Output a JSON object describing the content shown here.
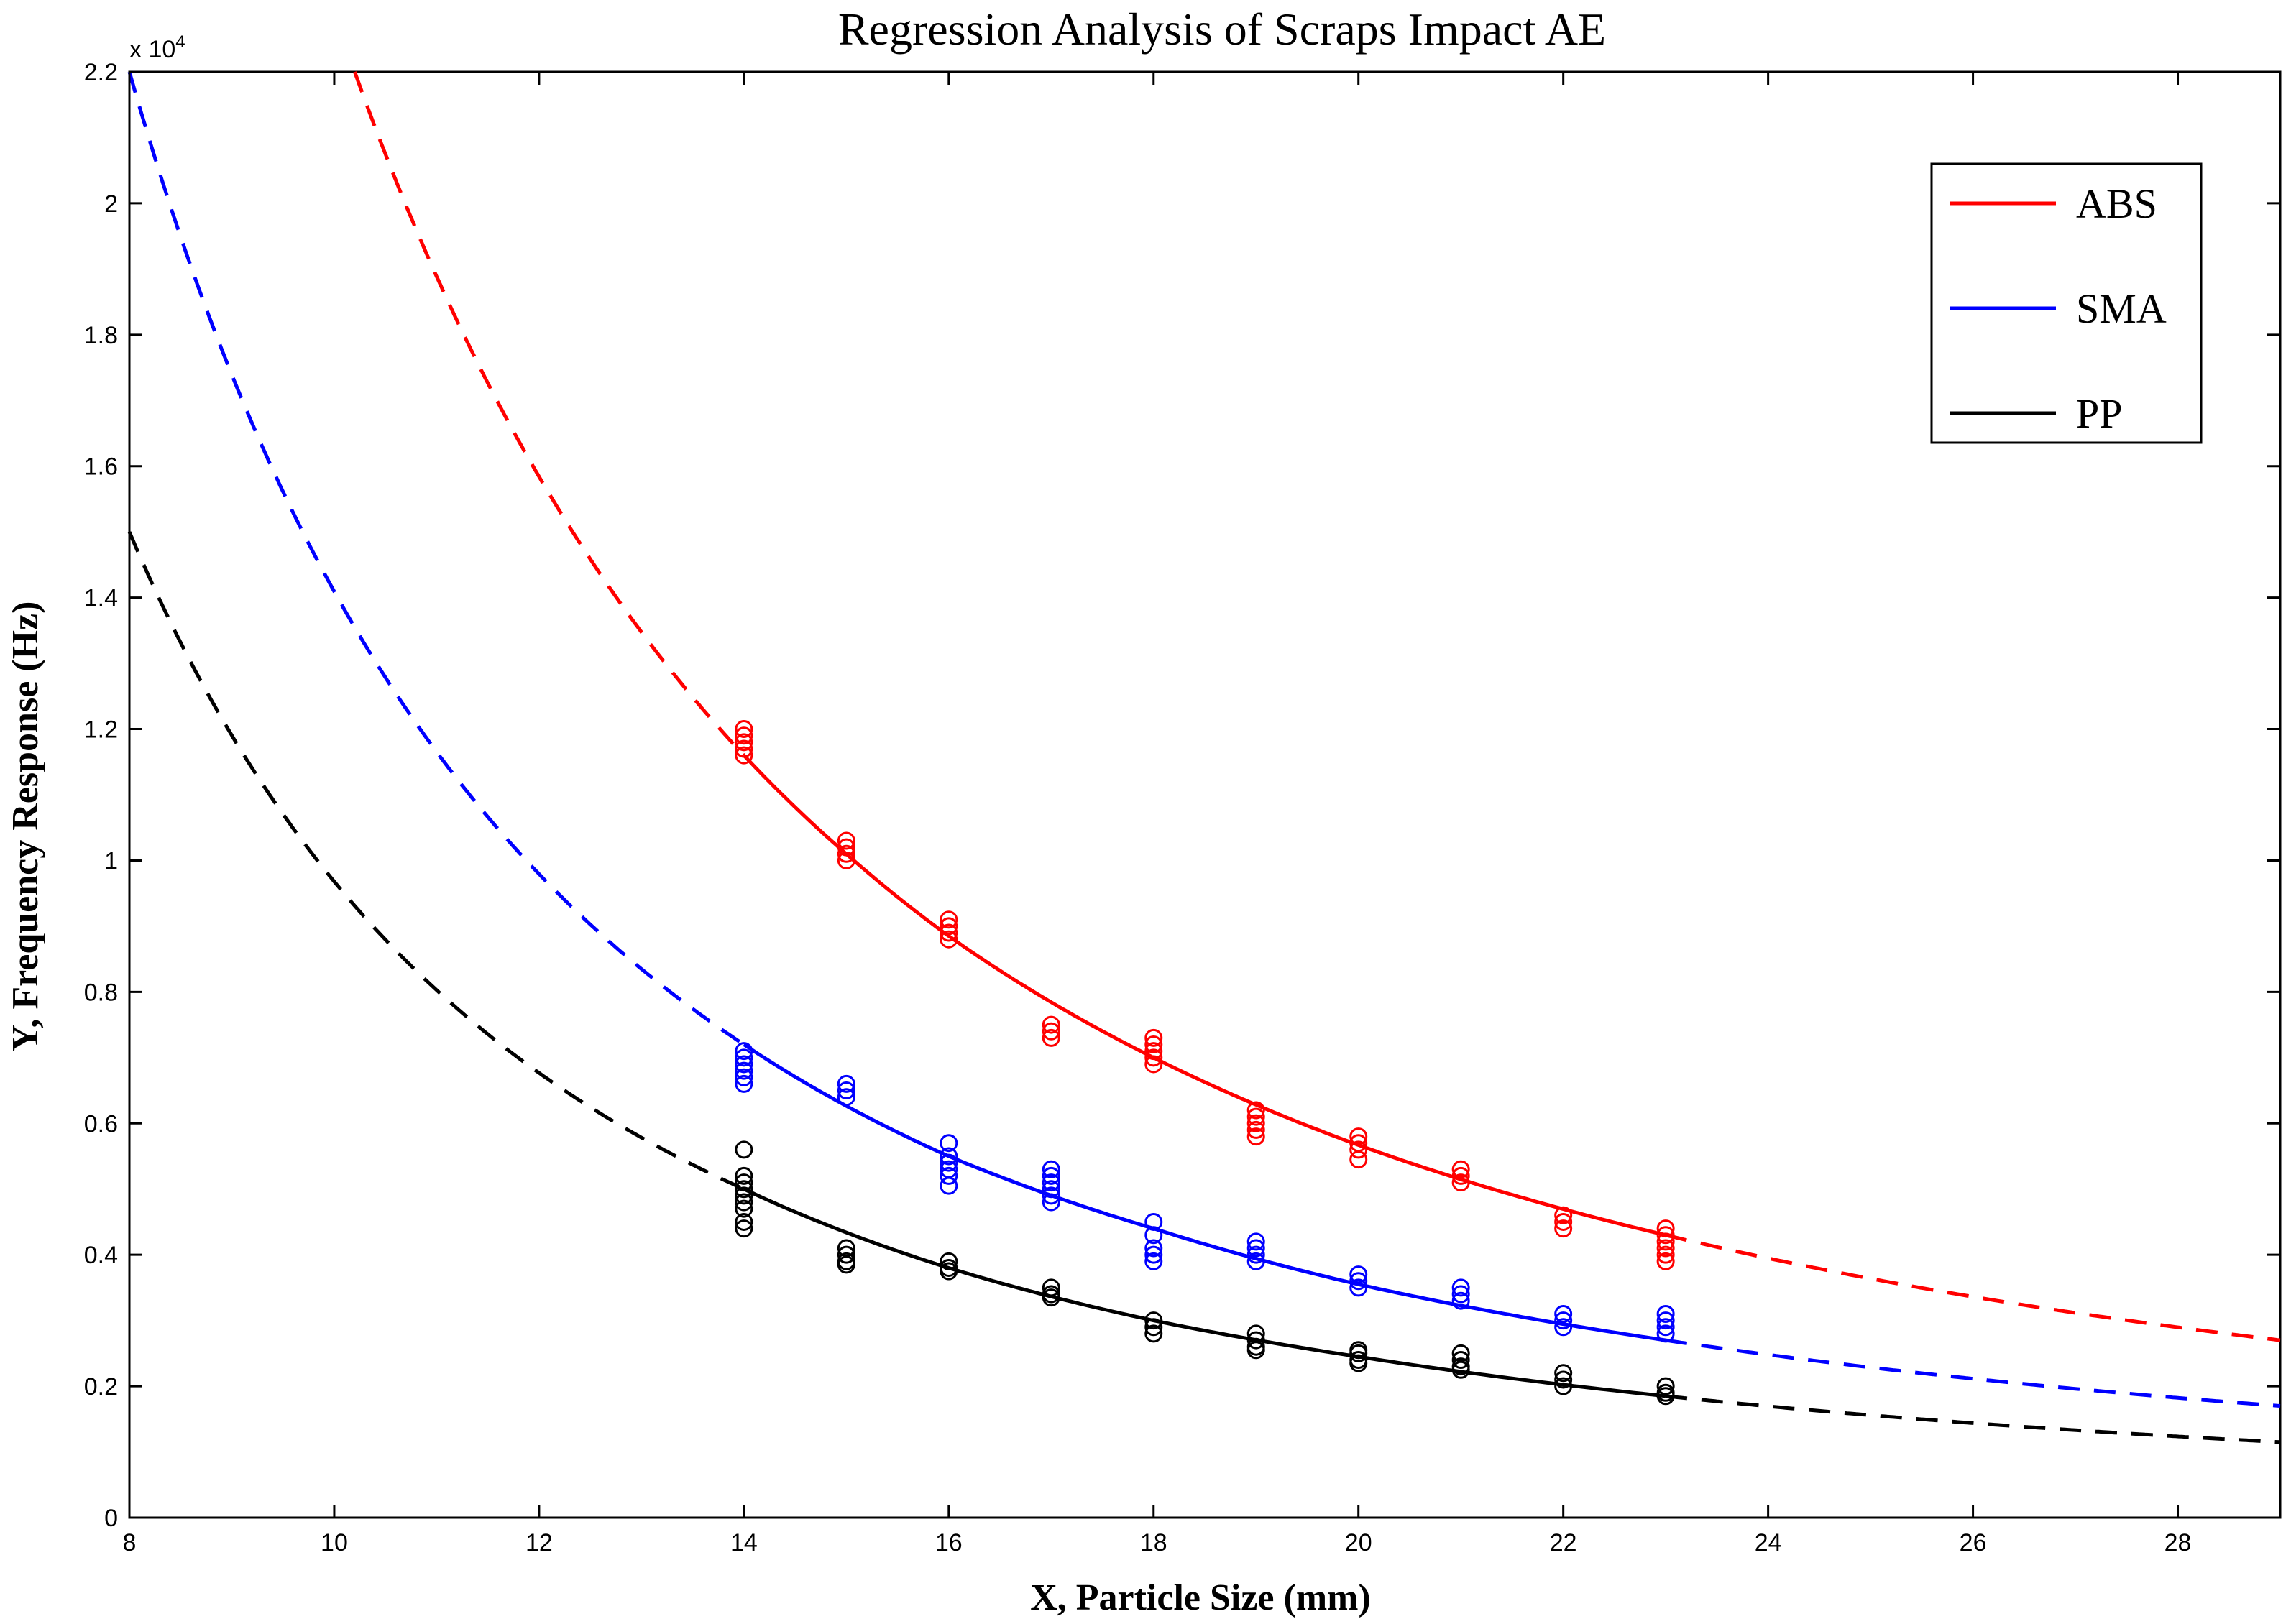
{
  "chart_data": {
    "type": "scatter",
    "title": "Regression Analysis of Scraps Impact AE",
    "xlabel": "X, Particle Size (mm)",
    "ylabel": "Y, Frequency Response (Hz)",
    "xlim": [
      8,
      29
    ],
    "ylim": [
      0,
      2.2
    ],
    "y_exponent_label": "x 10",
    "y_exponent_power": "4",
    "x_ticks": [
      "8",
      "10",
      "12",
      "14",
      "16",
      "18",
      "20",
      "22",
      "24",
      "26",
      "28"
    ],
    "y_ticks": [
      "0",
      "0.2",
      "0.4",
      "0.6",
      "0.8",
      "1",
      "1.2",
      "1.4",
      "1.6",
      "1.8",
      "2",
      "2.2"
    ],
    "grid": false,
    "legend_position": "top-right",
    "fit_solid_range": [
      14,
      23
    ],
    "series": [
      {
        "name": "ABS",
        "color": "#ff0000",
        "fit_points": [
          [
            10.2,
            2.2
          ],
          [
            14,
            1.16
          ],
          [
            15,
            1.01
          ],
          [
            16,
            0.885
          ],
          [
            18,
            0.7
          ],
          [
            20,
            0.567
          ],
          [
            23,
            0.43
          ],
          [
            29,
            0.27
          ]
        ],
        "points": [
          [
            14,
            1.16
          ],
          [
            14,
            1.17
          ],
          [
            14,
            1.18
          ],
          [
            14,
            1.19
          ],
          [
            14,
            1.2
          ],
          [
            15,
            1.0
          ],
          [
            15,
            1.01
          ],
          [
            15,
            1.02
          ],
          [
            15,
            1.03
          ],
          [
            16,
            0.88
          ],
          [
            16,
            0.89
          ],
          [
            16,
            0.9
          ],
          [
            16,
            0.91
          ],
          [
            17,
            0.73
          ],
          [
            17,
            0.74
          ],
          [
            17,
            0.75
          ],
          [
            18,
            0.69
          ],
          [
            18,
            0.7
          ],
          [
            18,
            0.71
          ],
          [
            18,
            0.72
          ],
          [
            18,
            0.73
          ],
          [
            19,
            0.58
          ],
          [
            19,
            0.59
          ],
          [
            19,
            0.6
          ],
          [
            19,
            0.61
          ],
          [
            19,
            0.62
          ],
          [
            20,
            0.545
          ],
          [
            20,
            0.56
          ],
          [
            20,
            0.57
          ],
          [
            20,
            0.58
          ],
          [
            21,
            0.51
          ],
          [
            21,
            0.52
          ],
          [
            21,
            0.53
          ],
          [
            22,
            0.44
          ],
          [
            22,
            0.45
          ],
          [
            22,
            0.46
          ],
          [
            23,
            0.39
          ],
          [
            23,
            0.4
          ],
          [
            23,
            0.41
          ],
          [
            23,
            0.42
          ],
          [
            23,
            0.43
          ],
          [
            23,
            0.44
          ]
        ]
      },
      {
        "name": "SMA",
        "color": "#0000ff",
        "fit_points": [
          [
            8,
            2.2
          ],
          [
            14,
            0.72
          ],
          [
            16,
            0.55
          ],
          [
            18,
            0.44
          ],
          [
            20,
            0.355
          ],
          [
            23,
            0.27
          ],
          [
            29,
            0.17
          ]
        ],
        "points": [
          [
            14,
            0.66
          ],
          [
            14,
            0.67
          ],
          [
            14,
            0.68
          ],
          [
            14,
            0.69
          ],
          [
            14,
            0.7
          ],
          [
            14,
            0.71
          ],
          [
            15,
            0.64
          ],
          [
            15,
            0.65
          ],
          [
            15,
            0.66
          ],
          [
            16,
            0.505
          ],
          [
            16,
            0.52
          ],
          [
            16,
            0.53
          ],
          [
            16,
            0.54
          ],
          [
            16,
            0.55
          ],
          [
            16,
            0.57
          ],
          [
            17,
            0.48
          ],
          [
            17,
            0.49
          ],
          [
            17,
            0.5
          ],
          [
            17,
            0.51
          ],
          [
            17,
            0.52
          ],
          [
            17,
            0.53
          ],
          [
            18,
            0.39
          ],
          [
            18,
            0.4
          ],
          [
            18,
            0.41
          ],
          [
            18,
            0.43
          ],
          [
            18,
            0.45
          ],
          [
            19,
            0.39
          ],
          [
            19,
            0.4
          ],
          [
            19,
            0.41
          ],
          [
            19,
            0.42
          ],
          [
            20,
            0.35
          ],
          [
            20,
            0.36
          ],
          [
            20,
            0.37
          ],
          [
            21,
            0.33
          ],
          [
            21,
            0.34
          ],
          [
            21,
            0.35
          ],
          [
            22,
            0.29
          ],
          [
            22,
            0.3
          ],
          [
            22,
            0.31
          ],
          [
            23,
            0.28
          ],
          [
            23,
            0.29
          ],
          [
            23,
            0.3
          ],
          [
            23,
            0.31
          ]
        ]
      },
      {
        "name": "PP",
        "color": "#000000",
        "fit_points": [
          [
            8,
            1.5
          ],
          [
            14,
            0.5
          ],
          [
            16,
            0.38
          ],
          [
            18,
            0.3
          ],
          [
            20,
            0.245
          ],
          [
            23,
            0.185
          ],
          [
            29,
            0.115
          ]
        ],
        "points": [
          [
            14,
            0.44
          ],
          [
            14,
            0.45
          ],
          [
            14,
            0.47
          ],
          [
            14,
            0.48
          ],
          [
            14,
            0.49
          ],
          [
            14,
            0.5
          ],
          [
            14,
            0.51
          ],
          [
            14,
            0.52
          ],
          [
            14,
            0.56
          ],
          [
            15,
            0.385
          ],
          [
            15,
            0.39
          ],
          [
            15,
            0.4
          ],
          [
            15,
            0.41
          ],
          [
            16,
            0.375
          ],
          [
            16,
            0.38
          ],
          [
            16,
            0.39
          ],
          [
            17,
            0.335
          ],
          [
            17,
            0.34
          ],
          [
            17,
            0.35
          ],
          [
            18,
            0.28
          ],
          [
            18,
            0.29
          ],
          [
            18,
            0.3
          ],
          [
            19,
            0.255
          ],
          [
            19,
            0.26
          ],
          [
            19,
            0.27
          ],
          [
            19,
            0.28
          ],
          [
            20,
            0.235
          ],
          [
            20,
            0.24
          ],
          [
            20,
            0.25
          ],
          [
            20,
            0.255
          ],
          [
            21,
            0.225
          ],
          [
            21,
            0.23
          ],
          [
            21,
            0.24
          ],
          [
            21,
            0.25
          ],
          [
            22,
            0.2
          ],
          [
            22,
            0.21
          ],
          [
            22,
            0.22
          ],
          [
            23,
            0.185
          ],
          [
            23,
            0.19
          ],
          [
            23,
            0.2
          ]
        ]
      }
    ]
  }
}
